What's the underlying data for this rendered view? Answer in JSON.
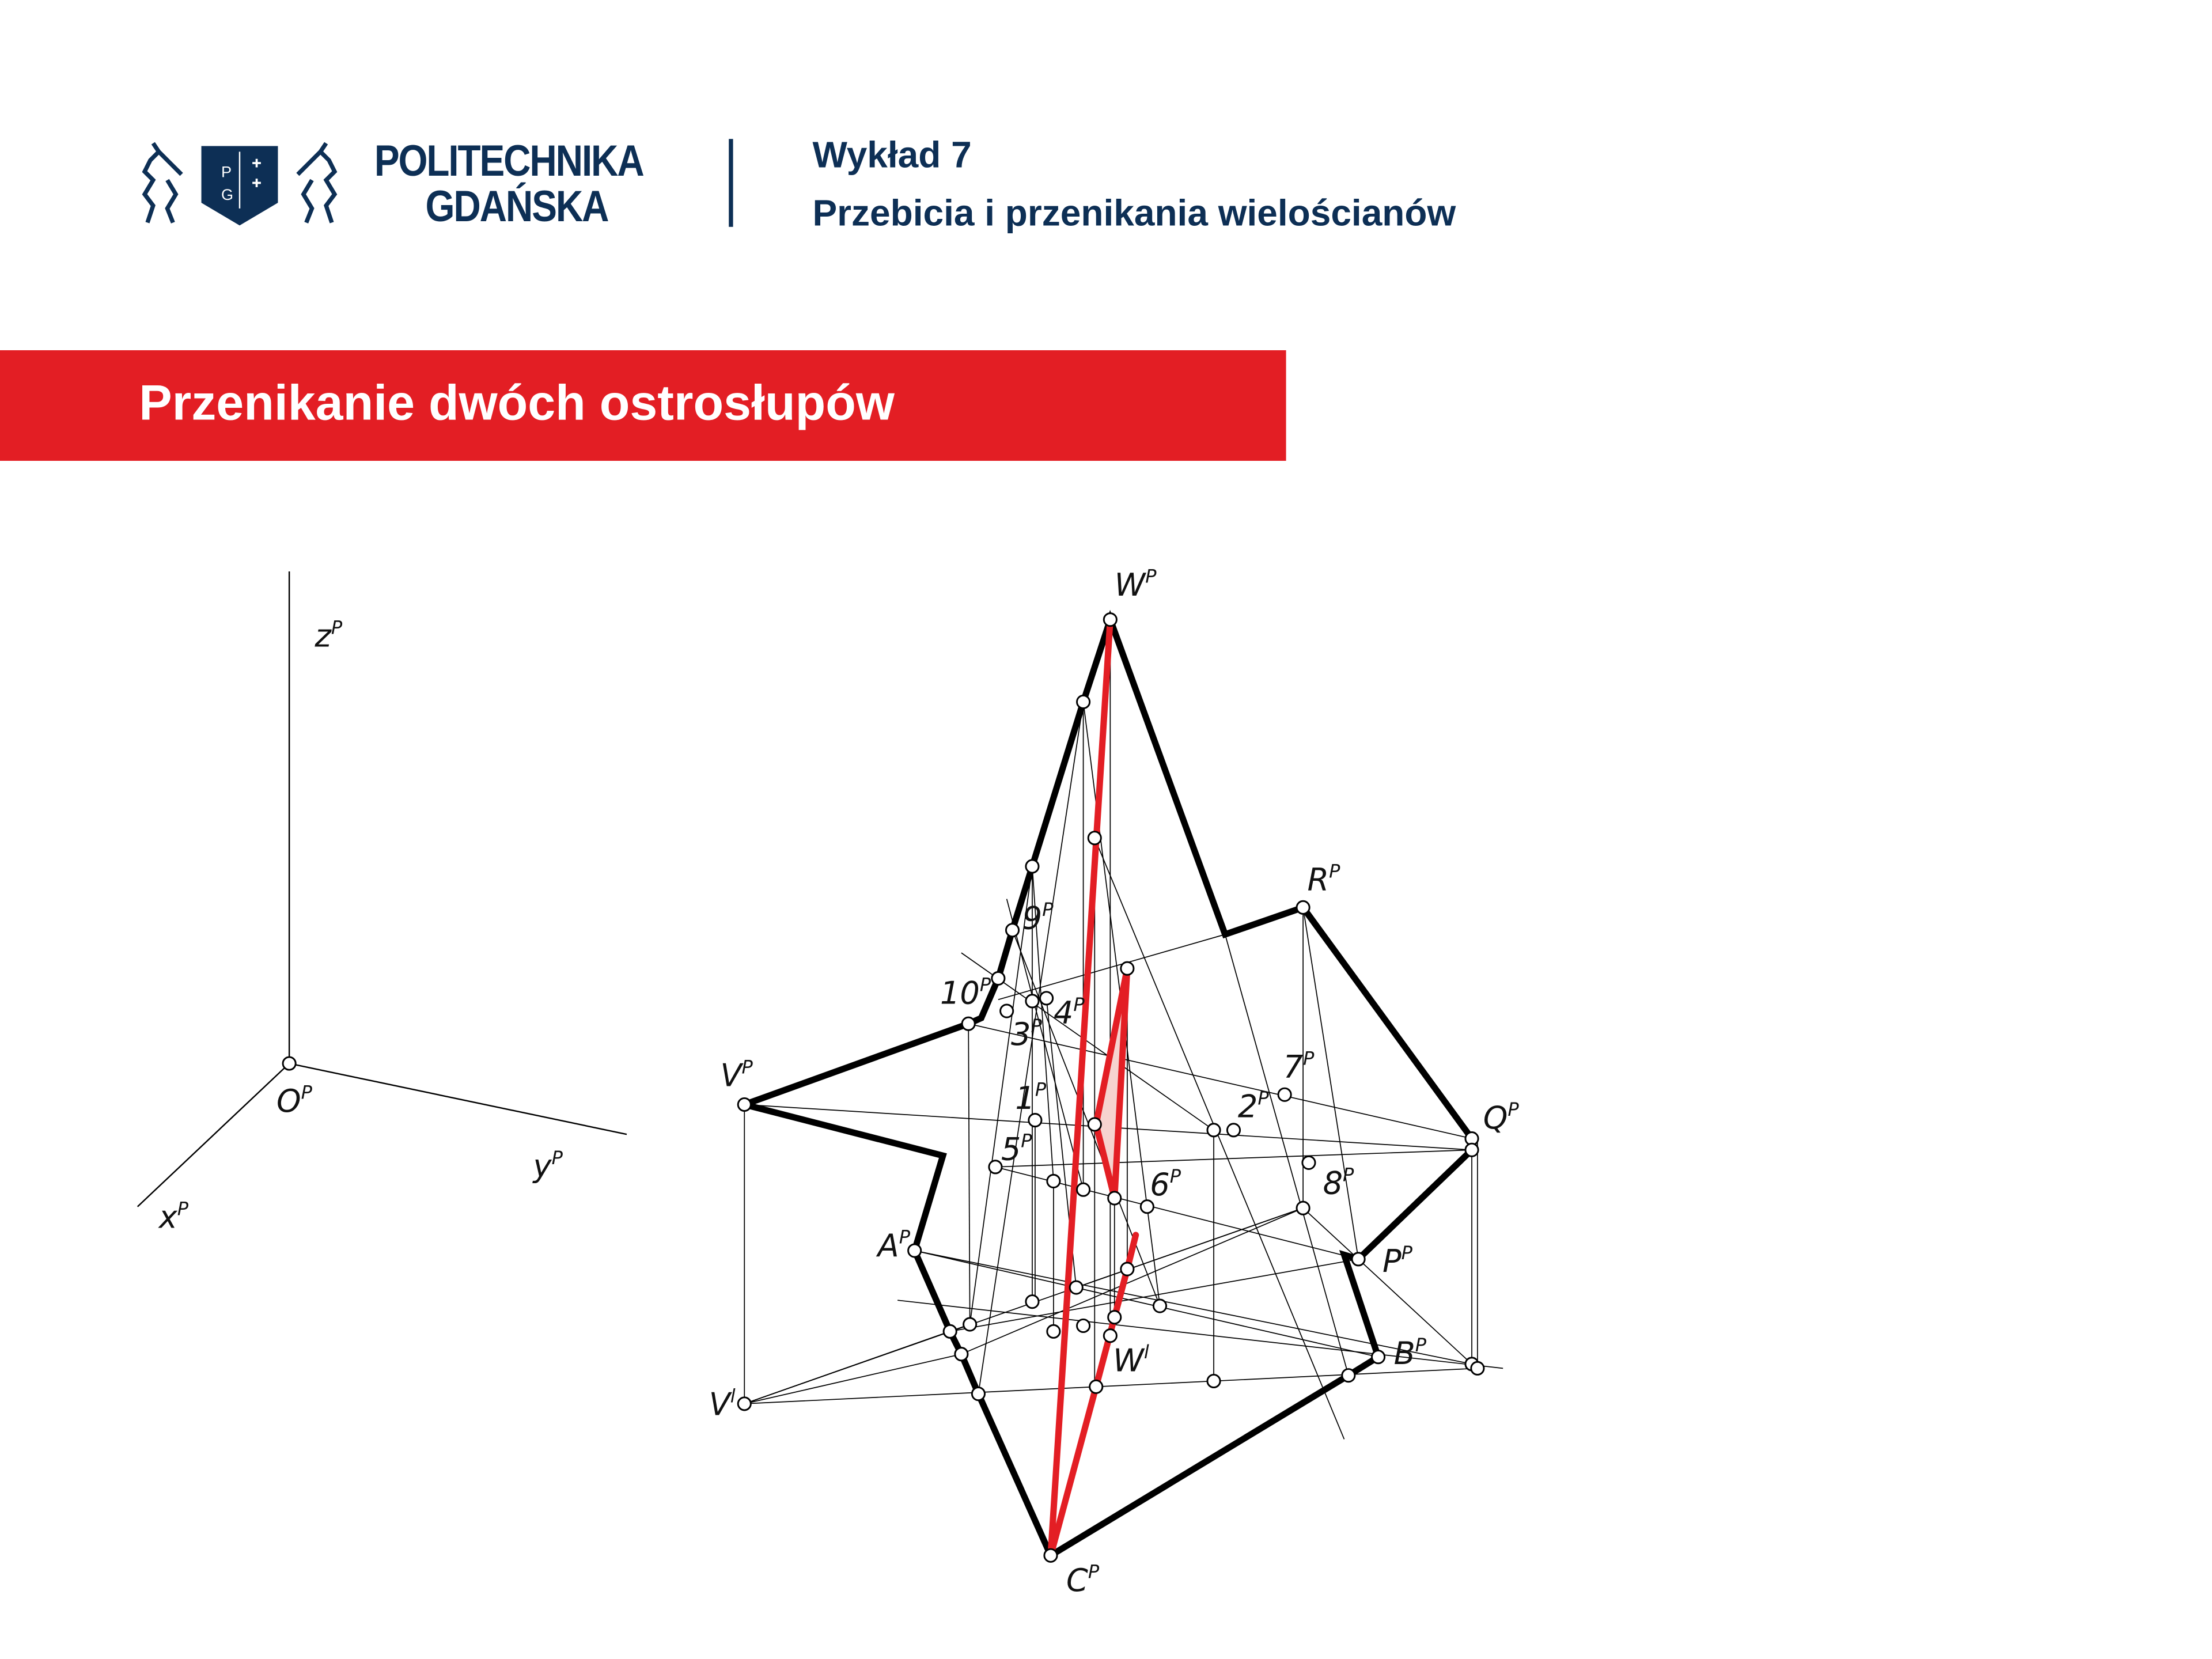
{
  "header": {
    "logo": {
      "line1": "POLITECHNIKA",
      "line2": "GDAŃSKA",
      "shield_letters": "PG"
    },
    "lecture_number": "Wykład 7",
    "lecture_title": "Przebicia i przenikania wielościanów"
  },
  "banner": {
    "title": "Przenikanie dwóch ostrosłupów",
    "color": "#e31e24"
  },
  "colors": {
    "brand_navy": "#0d2f55",
    "intersection": "#e31e24",
    "edges": "#000000"
  },
  "axes": {
    "z": {
      "base": "z",
      "sup": "P"
    },
    "o": {
      "base": "O",
      "sup": "P"
    },
    "y": {
      "base": "y",
      "sup": "P"
    },
    "x": {
      "base": "x",
      "sup": "P"
    }
  },
  "points": {
    "W": {
      "base": "W",
      "sup": "P"
    },
    "R": {
      "base": "R",
      "sup": "P"
    },
    "p9": {
      "base": "9",
      "sup": "P"
    },
    "p10": {
      "base": "10",
      "sup": "P"
    },
    "p4": {
      "base": "4",
      "sup": "P"
    },
    "p3": {
      "base": "3",
      "sup": "P"
    },
    "V": {
      "base": "V",
      "sup": "P"
    },
    "p7": {
      "base": "7",
      "sup": "P"
    },
    "p2": {
      "base": "2",
      "sup": "P"
    },
    "Q": {
      "base": "Q",
      "sup": "P"
    },
    "p1": {
      "base": "1",
      "sup": "P"
    },
    "p5": {
      "base": "5",
      "sup": "P"
    },
    "p6": {
      "base": "6",
      "sup": "P"
    },
    "p8": {
      "base": "8",
      "sup": "P"
    },
    "A": {
      "base": "A",
      "sup": "P"
    },
    "P": {
      "base": "P",
      "sup": "P"
    },
    "B": {
      "base": "B",
      "sup": "P"
    },
    "Wl": {
      "base": "W",
      "sup": "l"
    },
    "Vl": {
      "base": "V",
      "sup": "l"
    },
    "C": {
      "base": "C",
      "sup": "P"
    }
  }
}
